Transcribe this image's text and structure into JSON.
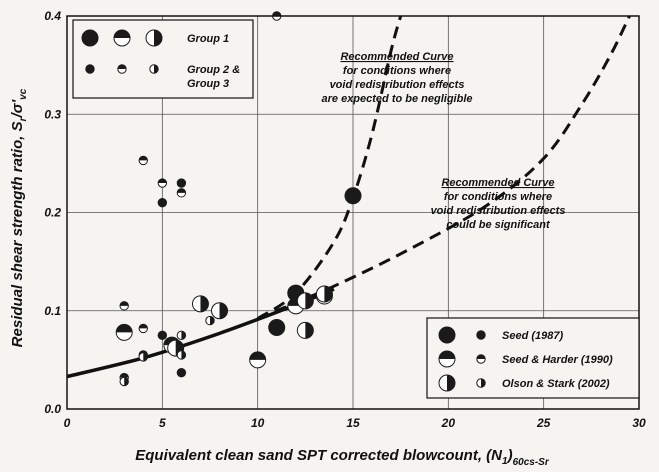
{
  "chart_data": {
    "type": "scatter",
    "xlabel": "Equivalent clean sand SPT corrected blowcount, (N",
    "xlabel_sub1": "1",
    "xlabel_close": ")",
    "xlabel_sub2": "60cs-Sr",
    "ylabel": "Residual shear strength ratio, S",
    "ylabel_sub1": "r",
    "ylabel_sep": "/σ'",
    "ylabel_sub2": "vc",
    "xlim": [
      0,
      30
    ],
    "ylim": [
      0,
      0.4
    ],
    "x_ticks": [
      "0",
      "5",
      "10",
      "15",
      "20",
      "25",
      "30"
    ],
    "y_ticks": [
      "0.0",
      "0.1",
      "0.2",
      "0.3",
      "0.4"
    ],
    "grid": true,
    "legend_groups": {
      "group1": "Group 1",
      "group23_line1": "Group 2 &",
      "group23_line2": "Group 3"
    },
    "legend_sources": {
      "seed1987": "Seed (1987)",
      "seedharder": "Seed & Harder (1990)",
      "olsonstark": "Olson & Stark (2002)"
    },
    "annotations": {
      "negligible": [
        "Recommended Curve",
        "for conditions where",
        "void redistribution effects",
        "are expected to be negligible"
      ],
      "significant": [
        "Recommended Curve",
        "for conditions where",
        "void redistribution effects",
        "could be significant"
      ]
    },
    "series": [
      {
        "source": "Seed (1987)",
        "group": "Group 1",
        "symbol": "solid",
        "points": [
          [
            15,
            0.217
          ],
          [
            11,
            0.083
          ],
          [
            12,
            0.118
          ]
        ]
      },
      {
        "source": "Seed (1987)",
        "group": "Group 2 & Group 3",
        "symbol": "solid",
        "points": [
          [
            5,
            0.21
          ],
          [
            6,
            0.23
          ],
          [
            5,
            0.075
          ],
          [
            6,
            0.037
          ]
        ]
      },
      {
        "source": "Seed & Harder (1990)",
        "group": "Group 1",
        "symbol": "half-horizontal",
        "points": [
          [
            10,
            0.05
          ],
          [
            3,
            0.078
          ],
          [
            12,
            0.105
          ],
          [
            13.5,
            0.115
          ],
          [
            5.5,
            0.065
          ]
        ]
      },
      {
        "source": "Seed & Harder (1990)",
        "group": "Group 2 & Group 3",
        "symbol": "half-horizontal",
        "points": [
          [
            4,
            0.253
          ],
          [
            5,
            0.23
          ],
          [
            6,
            0.22
          ],
          [
            3,
            0.105
          ],
          [
            4,
            0.082
          ],
          [
            3,
            0.032
          ],
          [
            4,
            0.055
          ],
          [
            11,
            0.4
          ]
        ]
      },
      {
        "source": "Olson & Stark (2002)",
        "group": "Group 1",
        "symbol": "half-vertical",
        "points": [
          [
            7,
            0.107
          ],
          [
            8,
            0.1
          ],
          [
            12.5,
            0.08
          ],
          [
            12.5,
            0.11
          ],
          [
            13.5,
            0.117
          ],
          [
            5.7,
            0.062
          ]
        ]
      },
      {
        "source": "Olson & Stark (2002)",
        "group": "Group 2 & Group 3",
        "symbol": "half-vertical",
        "points": [
          [
            6,
            0.075
          ],
          [
            7.5,
            0.09
          ],
          [
            6,
            0.055
          ],
          [
            3,
            0.028
          ],
          [
            4,
            0.053
          ]
        ]
      }
    ],
    "curves": {
      "solid_trend": {
        "x": [
          0,
          4,
          8,
          12,
          14
        ],
        "y": [
          0.033,
          0.052,
          0.077,
          0.106,
          0.122
        ]
      },
      "negligible": {
        "x": [
          10,
          12,
          14,
          15,
          16,
          17,
          17.5
        ],
        "y": [
          0.092,
          0.118,
          0.17,
          0.215,
          0.28,
          0.365,
          0.4
        ]
      },
      "significant": {
        "x": [
          10,
          14,
          18,
          22,
          25,
          27,
          28.5,
          29.5
        ],
        "y": [
          0.092,
          0.125,
          0.163,
          0.207,
          0.255,
          0.31,
          0.36,
          0.4
        ]
      }
    }
  }
}
